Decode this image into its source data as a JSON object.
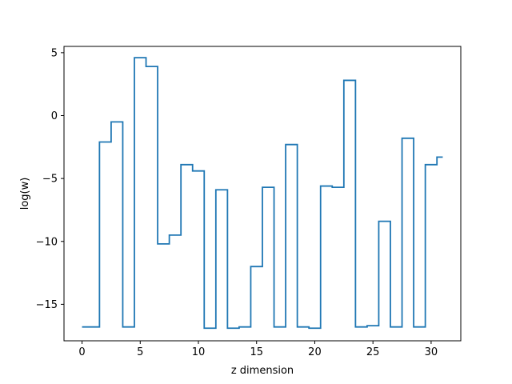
{
  "chart_data": {
    "type": "line",
    "drawstyle": "steps-mid",
    "xlabel": "z dimension",
    "ylabel": "log(w)",
    "xlim": [
      -1.55,
      32.55
    ],
    "ylim": [
      -17.9,
      5.5
    ],
    "xticks": [
      0,
      5,
      10,
      15,
      20,
      25,
      30
    ],
    "yticks": [
      -15,
      -10,
      -5,
      0,
      5
    ],
    "ytick_labels": [
      "−15",
      "−10",
      "−5",
      "0",
      "5"
    ],
    "grid": false,
    "series": [
      {
        "color": "#1f77b4",
        "x": [
          0,
          1,
          2,
          3,
          4,
          5,
          6,
          7,
          8,
          9,
          10,
          11,
          12,
          13,
          14,
          15,
          16,
          17,
          18,
          19,
          20,
          21,
          22,
          23,
          24,
          25,
          26,
          27,
          28,
          29,
          30,
          31
        ],
        "values": [
          -16.8,
          -16.8,
          -2.1,
          -0.5,
          -16.8,
          4.6,
          3.9,
          -10.2,
          -9.5,
          -3.9,
          -4.4,
          -16.9,
          -5.9,
          -16.9,
          -16.8,
          -12.0,
          -5.7,
          -16.8,
          -2.3,
          -16.8,
          -16.9,
          -5.6,
          -5.7,
          2.8,
          -16.8,
          -16.7,
          -8.4,
          -16.8,
          -1.8,
          -16.8,
          -3.9,
          -3.3
        ]
      }
    ]
  }
}
